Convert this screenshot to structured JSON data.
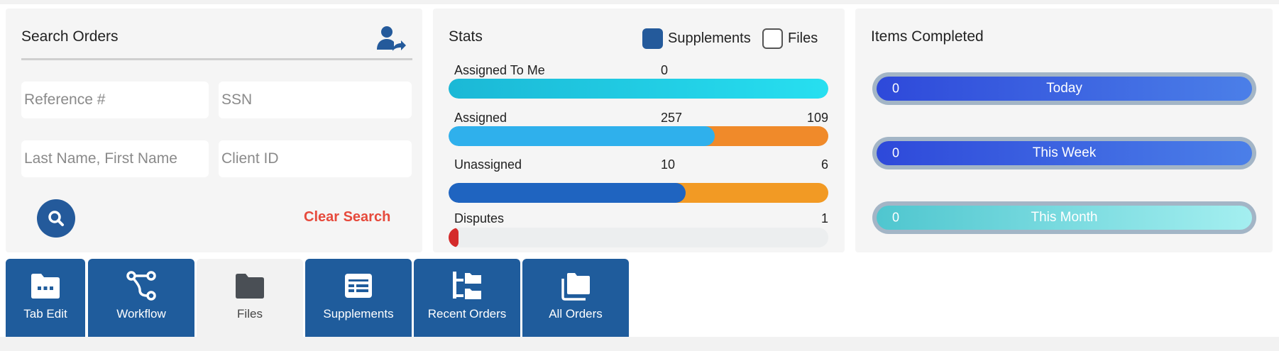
{
  "search": {
    "title": "Search Orders",
    "reference_placeholder": "Reference #",
    "ssn_placeholder": "SSN",
    "name_placeholder": "Last Name, First Name",
    "client_placeholder": "Client ID",
    "clear_label": "Clear Search",
    "icons": {
      "header": "user-share-icon",
      "search": "search-icon"
    }
  },
  "stats": {
    "title": "Stats",
    "legend": [
      {
        "label": "Supplements",
        "checked": true,
        "color": "#245a9b"
      },
      {
        "label": "Files",
        "checked": false
      }
    ],
    "rows": [
      {
        "label": "Assigned To Me",
        "supplements": "0",
        "files": "",
        "fill": 1.0,
        "colors": [
          "#1bb8d6",
          "#27dff0"
        ]
      },
      {
        "label": "Assigned",
        "supplements": "257",
        "files": "109",
        "fill": 0.7,
        "colors": [
          "#2fb0ec",
          "#f08a2a"
        ]
      },
      {
        "label": "Unassigned",
        "supplements": "10",
        "files": "6",
        "fill": 0.625,
        "colors": [
          "#1f64c0",
          "#f29a24"
        ]
      },
      {
        "label": "Disputes",
        "supplements": "",
        "files": "1",
        "fill": 0.02,
        "colors": [
          "#d42b2b",
          "#eceeef"
        ]
      }
    ]
  },
  "items": {
    "title": "Items Completed",
    "pills": [
      {
        "count": "0",
        "label": "Today"
      },
      {
        "count": "0",
        "label": "This Week"
      },
      {
        "count": "0",
        "label": "This Month"
      }
    ]
  },
  "tabs": [
    {
      "label": "Tab Edit",
      "icon": "folder-dots-icon",
      "active": true
    },
    {
      "label": "Workflow",
      "icon": "workflow-icon",
      "active": true
    },
    {
      "label": "Files",
      "icon": "folder-icon",
      "active": false
    },
    {
      "label": "Supplements",
      "icon": "supplements-icon",
      "active": true
    },
    {
      "label": "Recent Orders",
      "icon": "tree-folders-icon",
      "active": true
    },
    {
      "label": "All Orders",
      "icon": "stacked-folders-icon",
      "active": true
    }
  ],
  "colors": {
    "primary": "#1f5c9c",
    "danger": "#e64a3c",
    "panel": "#f5f5f5"
  }
}
